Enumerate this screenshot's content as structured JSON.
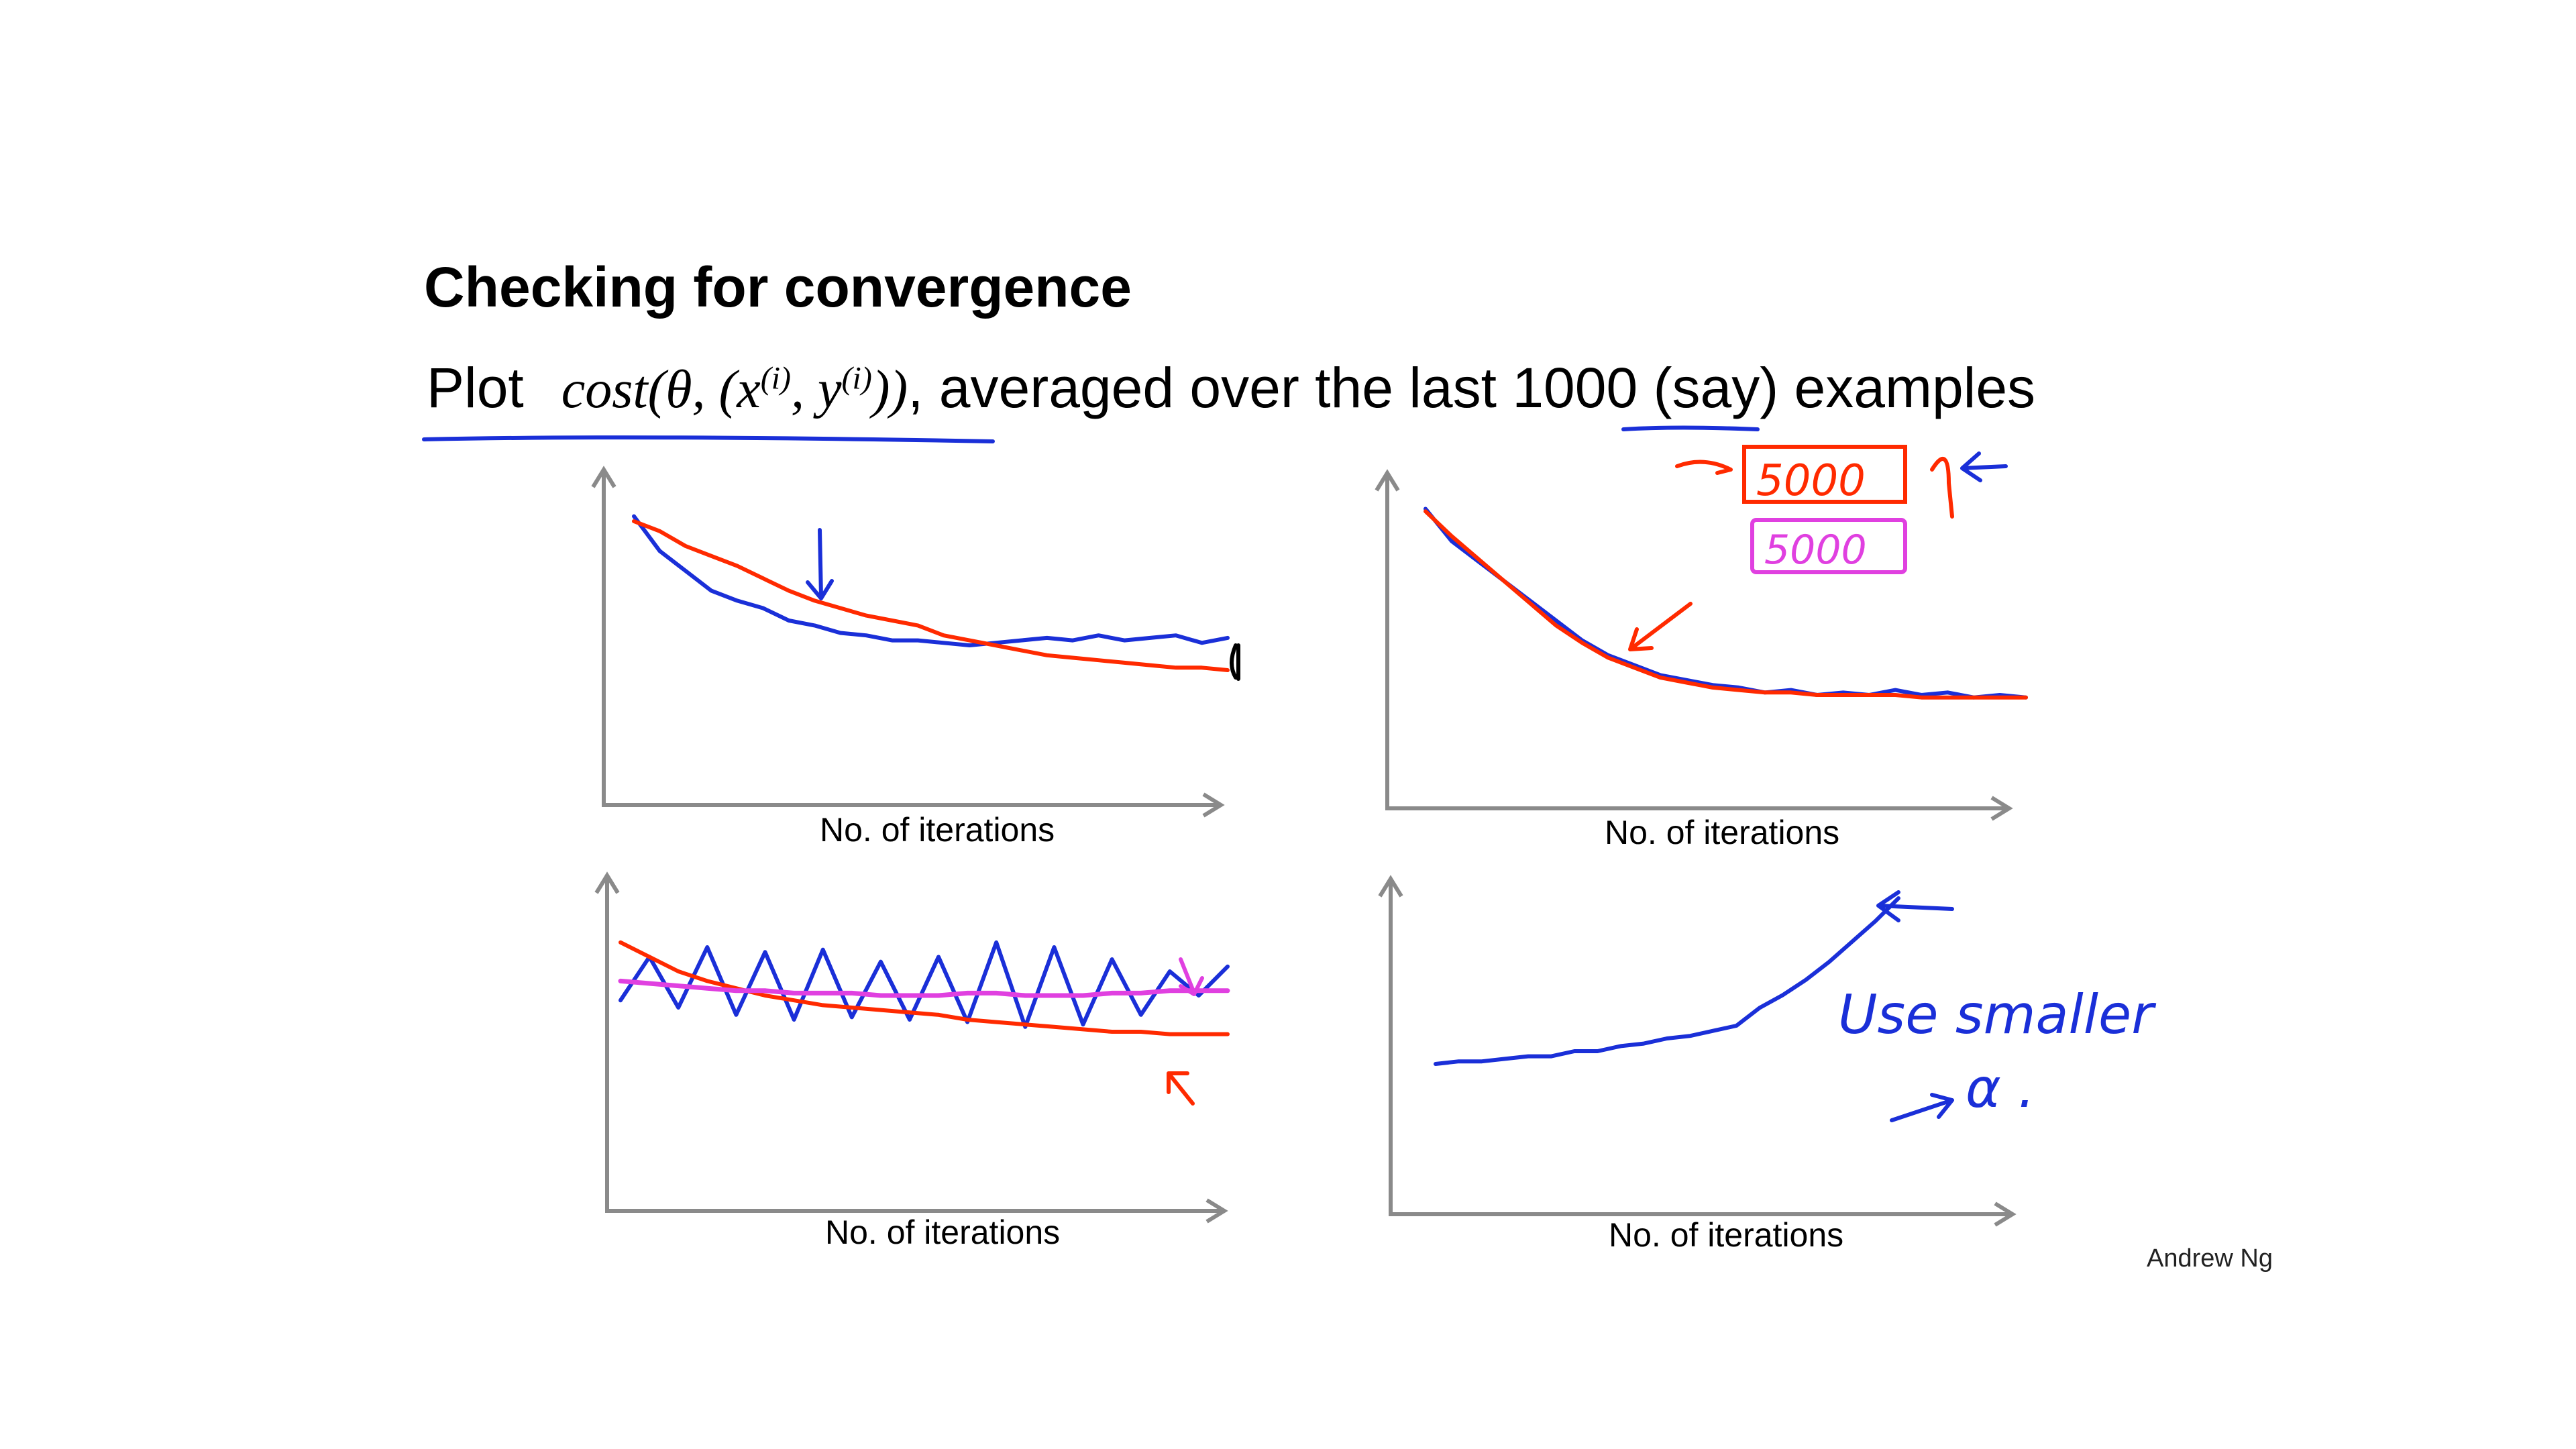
{
  "slide": {
    "title": "Checking for convergence",
    "subtitle_plot": "Plot",
    "subtitle_cost": "cost(θ, (x",
    "subtitle_sup_i": "(i)",
    "subtitle_y": ", y",
    "subtitle_close": "))",
    "subtitle_rest": ", averaged over the last ",
    "subtitle_count": "1000",
    "subtitle_tail": " (say) examples",
    "credit": "Andrew Ng"
  },
  "annotations": {
    "box_5000_red": "5000",
    "box_5000_pink": "5000",
    "use_smaller": "Use smaller",
    "alpha": "α ."
  },
  "colors": {
    "blue": "#1a2fd8",
    "red": "#ff2a00",
    "pink": "#e040e0",
    "axis": "#8a8a8a"
  },
  "chart_data": [
    {
      "type": "line",
      "xlabel": "No. of iterations",
      "ylabel": "",
      "grid": false,
      "series": [
        {
          "color": "blue",
          "values": [
            0.92,
            0.78,
            0.7,
            0.62,
            0.58,
            0.55,
            0.5,
            0.48,
            0.45,
            0.44,
            0.42,
            0.42,
            0.41,
            0.4,
            0.41,
            0.42,
            0.43,
            0.42,
            0.44,
            0.42,
            0.43,
            0.44,
            0.41,
            0.43
          ]
        },
        {
          "color": "red",
          "values": [
            0.9,
            0.86,
            0.8,
            0.76,
            0.72,
            0.67,
            0.62,
            0.58,
            0.55,
            0.52,
            0.5,
            0.48,
            0.44,
            0.42,
            0.4,
            0.38,
            0.36,
            0.35,
            0.34,
            0.33,
            0.32,
            0.31,
            0.31,
            0.3
          ]
        }
      ]
    },
    {
      "type": "line",
      "xlabel": "No. of iterations",
      "ylabel": "",
      "grid": false,
      "series": [
        {
          "color": "blue",
          "values": [
            0.95,
            0.82,
            0.74,
            0.66,
            0.58,
            0.5,
            0.42,
            0.36,
            0.32,
            0.28,
            0.26,
            0.24,
            0.23,
            0.21,
            0.22,
            0.2,
            0.21,
            0.2,
            0.22,
            0.2,
            0.21,
            0.19,
            0.2,
            0.19
          ]
        },
        {
          "color": "red",
          "values": [
            0.94,
            0.84,
            0.75,
            0.66,
            0.57,
            0.48,
            0.41,
            0.35,
            0.31,
            0.27,
            0.25,
            0.23,
            0.22,
            0.21,
            0.21,
            0.2,
            0.2,
            0.2,
            0.2,
            0.19,
            0.19,
            0.19,
            0.19,
            0.19
          ]
        }
      ]
    },
    {
      "type": "line",
      "xlabel": "No. of iterations",
      "ylabel": "",
      "grid": false,
      "series": [
        {
          "color": "blue",
          "values": [
            0.58,
            0.76,
            0.55,
            0.8,
            0.52,
            0.78,
            0.5,
            0.79,
            0.51,
            0.74,
            0.5,
            0.76,
            0.49,
            0.82,
            0.47,
            0.8,
            0.48,
            0.75,
            0.52,
            0.7,
            0.6,
            0.72
          ]
        },
        {
          "color": "red",
          "values": [
            0.82,
            0.76,
            0.7,
            0.66,
            0.63,
            0.6,
            0.58,
            0.56,
            0.55,
            0.54,
            0.53,
            0.52,
            0.5,
            0.49,
            0.48,
            0.47,
            0.46,
            0.45,
            0.45,
            0.44,
            0.44,
            0.44
          ]
        },
        {
          "color": "pink",
          "values": [
            0.66,
            0.65,
            0.64,
            0.63,
            0.62,
            0.62,
            0.61,
            0.61,
            0.61,
            0.6,
            0.6,
            0.6,
            0.61,
            0.61,
            0.6,
            0.6,
            0.6,
            0.61,
            0.61,
            0.62,
            0.62,
            0.62
          ]
        }
      ]
    },
    {
      "type": "line",
      "xlabel": "No. of iterations",
      "ylabel": "",
      "grid": false,
      "series": [
        {
          "color": "blue",
          "values": [
            0.3,
            0.31,
            0.31,
            0.32,
            0.33,
            0.33,
            0.35,
            0.35,
            0.37,
            0.38,
            0.4,
            0.41,
            0.43,
            0.45,
            0.52,
            0.57,
            0.63,
            0.7,
            0.78,
            0.86,
            0.95
          ]
        }
      ]
    }
  ]
}
